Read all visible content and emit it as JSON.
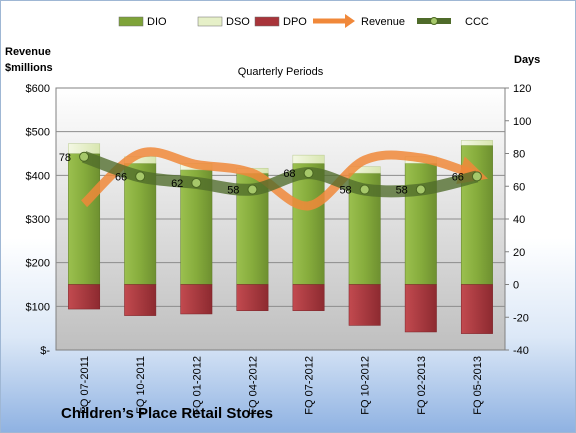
{
  "chart_data": {
    "type": "bar",
    "title": "Quarterly Periods",
    "categories": [
      "FQ 07-2011",
      "FQ 10-2011",
      "FQ 01-2012",
      "FQ 04-2012",
      "FQ 07-2012",
      "FQ 10-2012",
      "FQ 02-2013",
      "FQ 05-2013"
    ],
    "left_axis": {
      "label_line1": "Revenue",
      "label_line2": "$millions",
      "ticks": [
        "$-",
        "$100",
        "$200",
        "$300",
        "$400",
        "$500",
        "$600"
      ],
      "range": [
        0,
        600
      ]
    },
    "right_axis": {
      "label": "Days",
      "ticks": [
        "-40",
        "-20",
        "0",
        "20",
        "40",
        "60",
        "80",
        "100",
        "120"
      ],
      "range": [
        -40,
        120
      ]
    },
    "legend": [
      {
        "name": "DIO",
        "kind": "bar",
        "color": "#7ea339"
      },
      {
        "name": "DSO",
        "kind": "bar",
        "color": "#e6f0c8"
      },
      {
        "name": "DPO",
        "kind": "bar",
        "color": "#a8343a"
      },
      {
        "name": "Revenue",
        "kind": "arrow",
        "color": "#f0883a"
      },
      {
        "name": "CCC",
        "kind": "line-marker",
        "color": "#6b8f3a"
      }
    ],
    "series": [
      {
        "name": "DIO",
        "axis": "days",
        "values": [
          80,
          74,
          70,
          68,
          74,
          68,
          74,
          85
        ]
      },
      {
        "name": "DSO",
        "axis": "days",
        "values": [
          6,
          4,
          4,
          3,
          5,
          4,
          4,
          3
        ]
      },
      {
        "name": "DPO",
        "axis": "days",
        "values": [
          -15,
          -19,
          -18,
          -16,
          -16,
          -25,
          -29,
          -30
        ]
      },
      {
        "name": "Revenue",
        "axis": "dollars",
        "values": [
          335,
          450,
          425,
          405,
          330,
          435,
          440,
          400
        ]
      },
      {
        "name": "CCC",
        "axis": "days",
        "values": [
          78,
          66,
          62,
          58,
          68,
          58,
          58,
          66
        ],
        "labels": [
          "78",
          "66",
          "62",
          "58",
          "68",
          "58",
          "58",
          "66"
        ]
      }
    ],
    "grid": true,
    "legend_position": "top"
  },
  "footer": {
    "company": "Children’s Place Retail Stores"
  }
}
